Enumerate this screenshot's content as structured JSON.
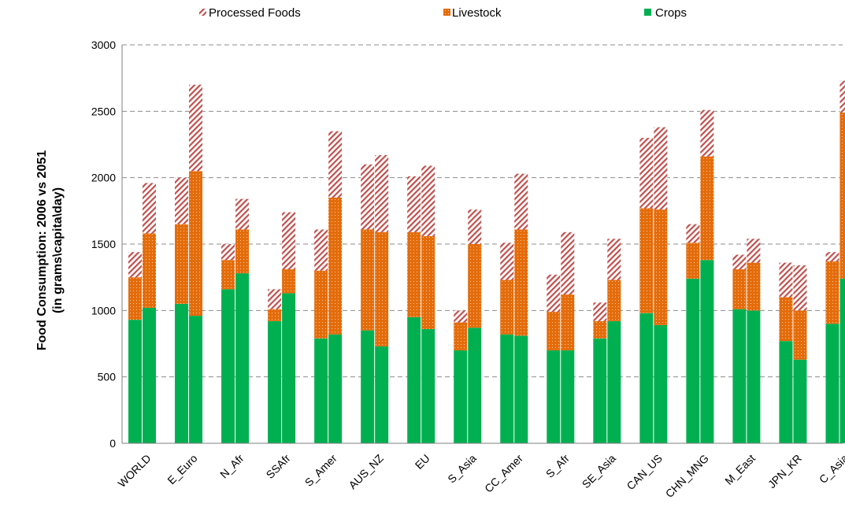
{
  "chart_data": {
    "type": "bar",
    "stacked": true,
    "title": "",
    "ylabel": [
      "Food Consumption: 2006 vs 2051",
      "(in grams\\capita\\day)"
    ],
    "xlabel": "",
    "ylim": [
      0,
      3000
    ],
    "yticks": [
      0,
      500,
      1000,
      1500,
      2000,
      2500,
      3000
    ],
    "grid": true,
    "legend_position": "top",
    "categories": [
      "WORLD",
      "E_Euro",
      "N_Afr",
      "SSAfr",
      "S_Amer",
      "AUS_NZ",
      "EU",
      "S_Asia",
      "CC_Amer",
      "S_Afr",
      "SE_Asia",
      "CAN_US",
      "CHN_MNG",
      "M_East",
      "JPN_KR",
      "C_Asia"
    ],
    "bars_per_category": [
      "2006",
      "2051"
    ],
    "series": [
      {
        "name": "Crops",
        "color": "#00b050",
        "values": [
          [
            930,
            1020
          ],
          [
            1050,
            960
          ],
          [
            1160,
            1280
          ],
          [
            920,
            1130
          ],
          [
            790,
            820
          ],
          [
            850,
            730
          ],
          [
            950,
            860
          ],
          [
            700,
            870
          ],
          [
            820,
            810
          ],
          [
            700,
            700
          ],
          [
            790,
            920
          ],
          [
            980,
            890
          ],
          [
            1240,
            1380
          ],
          [
            1010,
            1000
          ],
          [
            770,
            630
          ],
          [
            900,
            1240
          ]
        ]
      },
      {
        "name": "Livestock",
        "color": "#e46c0a",
        "values": [
          [
            320,
            560
          ],
          [
            600,
            1090
          ],
          [
            220,
            330
          ],
          [
            90,
            180
          ],
          [
            510,
            1030
          ],
          [
            760,
            860
          ],
          [
            640,
            700
          ],
          [
            210,
            630
          ],
          [
            410,
            800
          ],
          [
            290,
            420
          ],
          [
            130,
            310
          ],
          [
            790,
            870
          ],
          [
            270,
            780
          ],
          [
            300,
            360
          ],
          [
            330,
            370
          ],
          [
            470,
            1250
          ]
        ]
      },
      {
        "name": "Processed Foods",
        "color": "#c0504d",
        "values": [
          [
            190,
            380
          ],
          [
            350,
            650
          ],
          [
            120,
            230
          ],
          [
            150,
            430
          ],
          [
            310,
            500
          ],
          [
            490,
            580
          ],
          [
            420,
            530
          ],
          [
            90,
            260
          ],
          [
            280,
            420
          ],
          [
            280,
            470
          ],
          [
            140,
            310
          ],
          [
            530,
            620
          ],
          [
            140,
            350
          ],
          [
            110,
            180
          ],
          [
            260,
            340
          ],
          [
            70,
            240
          ]
        ]
      }
    ],
    "legend": [
      "Processed Foods",
      "Livestock",
      "Crops"
    ]
  }
}
